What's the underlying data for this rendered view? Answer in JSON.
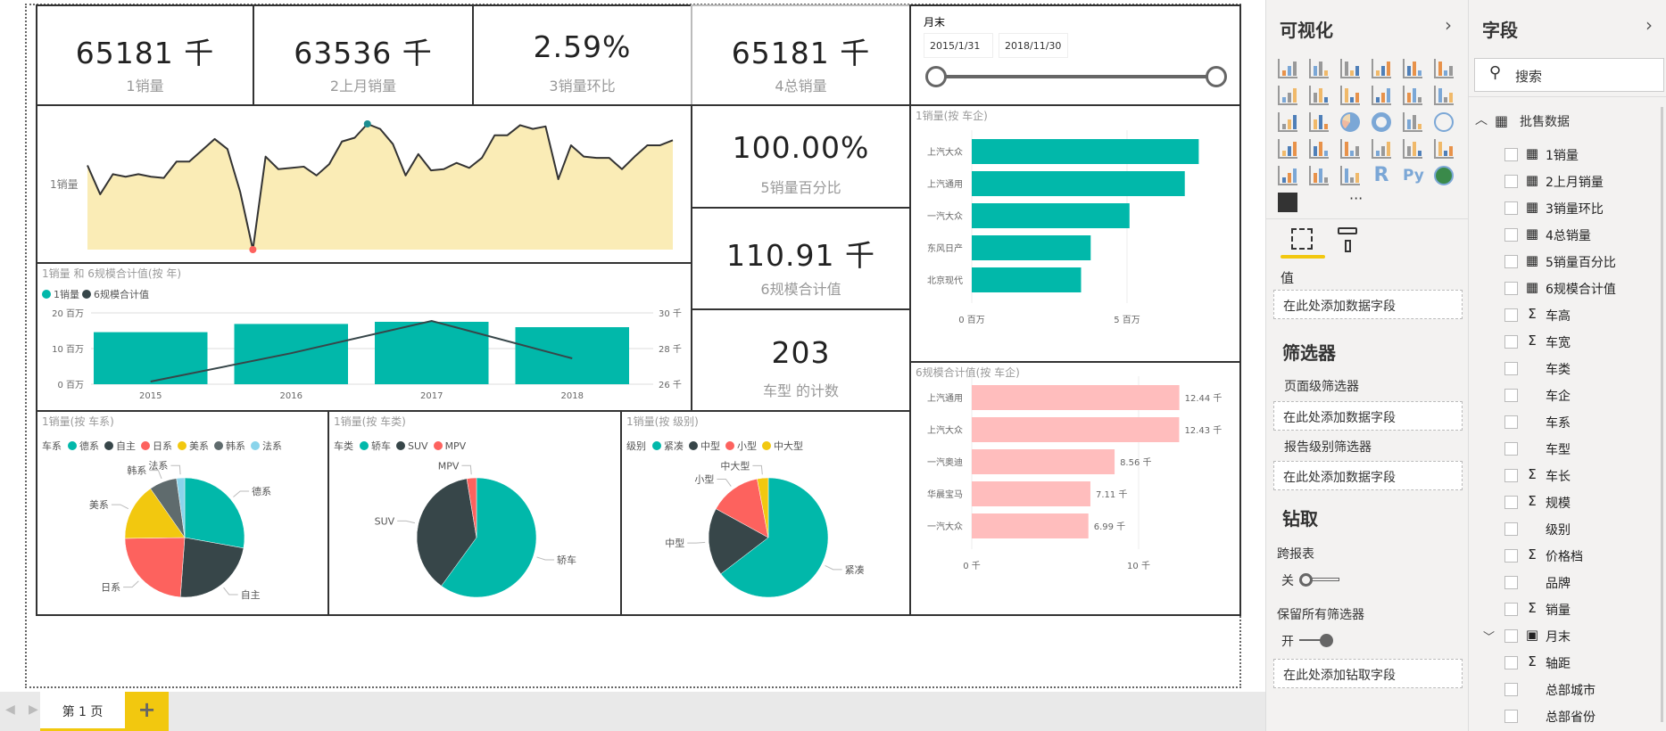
{
  "kpis": [
    {
      "value": "65181 千",
      "label": "1销量"
    },
    {
      "value": "63536 千",
      "label": "2上月销量"
    },
    {
      "value": "2.59%",
      "label": "3销量环比"
    },
    {
      "value": "65181 千",
      "label": "4总销量"
    },
    {
      "value": "100.00%",
      "label": "5销量百分比"
    },
    {
      "value": "110.91 千",
      "label": "6规模合计值"
    },
    {
      "value": "203",
      "label": "车型 的计数"
    }
  ],
  "slicer": {
    "title": "月末",
    "start": "2015/1/31",
    "end": "2018/11/30",
    "range": [
      0,
      1
    ]
  },
  "colors": {
    "teal": "#01B8AA",
    "dark": "#374649",
    "red": "#FD625E",
    "yellow": "#F2C80F",
    "gray": "#5F6B6D",
    "lightblue": "#8AD4EB",
    "pink": "#FFBDBD",
    "area": "#FAECB6"
  },
  "chart_data": [
    {
      "type": "area",
      "name": "monthly-sales",
      "ylabel": "1销量",
      "note": "relative index, no axis shown",
      "values": [
        67,
        44,
        60,
        58,
        60,
        58,
        57,
        70,
        70,
        79,
        88,
        80,
        46,
        0,
        74,
        64,
        65,
        66,
        59,
        68,
        86,
        89,
        100,
        96,
        84,
        59,
        76,
        63,
        64,
        69,
        65,
        73,
        91,
        91,
        99,
        96,
        98,
        56,
        83,
        74,
        73,
        73,
        64,
        74,
        83,
        83,
        87
      ],
      "max_marker_index": 22,
      "min_marker_index": 13
    },
    {
      "type": "bar+line",
      "title": "1销量 和 6规模合计值(按 年)",
      "legend": [
        "1销量",
        "6规模合计值"
      ],
      "categories": [
        "2015",
        "2016",
        "2017",
        "2018"
      ],
      "series": [
        {
          "name": "1销量",
          "unit": "百万",
          "values": [
            14.6,
            16.9,
            17.5,
            16.0
          ]
        },
        {
          "name": "6规模合计值",
          "unit": "千",
          "values": [
            26.15,
            27.74,
            29.55,
            27.45
          ]
        }
      ],
      "yticks_left": [
        "0 百万",
        "10 百万",
        "20 百万"
      ],
      "yticks_right": [
        "26 千",
        "28 千",
        "30 千"
      ],
      "ylim_left": [
        0,
        20
      ],
      "ylim_right": [
        26,
        30
      ]
    },
    {
      "type": "bar",
      "orientation": "horizontal",
      "title": "1销量(按 车企)",
      "categories": [
        "上汽大众",
        "上汽通用",
        "一汽大众",
        "东风日产",
        "北京现代"
      ],
      "values": [
        7.31,
        6.86,
        5.08,
        3.83,
        3.52
      ],
      "unit": "百万",
      "xticks": [
        "0 百万",
        "5 百万"
      ],
      "xlim": [
        0,
        7.8
      ]
    },
    {
      "type": "bar",
      "orientation": "horizontal",
      "title": "6规模合计值(按 车企)",
      "categories": [
        "上汽通用",
        "上汽大众",
        "一汽奥迪",
        "华晨宝马",
        "一汽大众"
      ],
      "values": [
        12.44,
        12.43,
        8.56,
        7.11,
        6.99
      ],
      "labels": [
        "12.44 千",
        "12.43 千",
        "8.56 千",
        "7.11 千",
        "6.99 千"
      ],
      "unit": "千",
      "xticks": [
        "0 千",
        "10 千"
      ],
      "xlim": [
        0,
        14.5
      ]
    },
    {
      "type": "pie",
      "title": "1销量(按 车系)",
      "legend_title": "车系",
      "categories": [
        "德系",
        "自主",
        "日系",
        "美系",
        "韩系",
        "法系"
      ],
      "values": [
        27.8,
        23.3,
        23.6,
        15.5,
        7.5,
        2.2
      ],
      "colors": [
        "#01B8AA",
        "#374649",
        "#FD625E",
        "#F2C80F",
        "#5F6B6D",
        "#8AD4EB"
      ]
    },
    {
      "type": "pie",
      "title": "1销量(按 车类)",
      "legend_title": "车类",
      "categories": [
        "轿车",
        "SUV",
        "MPV"
      ],
      "values": [
        60.0,
        37.4,
        2.6
      ],
      "colors": [
        "#01B8AA",
        "#374649",
        "#FD625E"
      ]
    },
    {
      "type": "pie",
      "title": "1销量(按 级别)",
      "legend_title": "级别",
      "categories": [
        "紧凑",
        "中型",
        "小型",
        "中大型"
      ],
      "values": [
        64.6,
        18.4,
        14.0,
        3.0
      ],
      "colors": [
        "#01B8AA",
        "#374649",
        "#FD625E",
        "#F2C80F"
      ]
    }
  ],
  "tabs": {
    "page1": "第 1 页",
    "add": "+"
  },
  "viz": {
    "title": "可视化",
    "values_label": "值",
    "values_drop": "在此处添加数据字段",
    "filters_title": "筛选器",
    "page_filters": "页面级筛选器",
    "page_drop": "在此处添加数据字段",
    "report_filters": "报告级别筛选器",
    "report_drop": "在此处添加数据字段",
    "drill_title": "钻取",
    "cross_report": "跨报表",
    "cross_state": "关",
    "keep_filters": "保留所有筛选器",
    "keep_state": "开",
    "drill_drop": "在此处添加钻取字段",
    "more": "···"
  },
  "fields": {
    "title": "字段",
    "search_placeholder": "搜索",
    "table": "批售数据",
    "items": [
      {
        "name": "1销量",
        "icon": "calc"
      },
      {
        "name": "2上月销量",
        "icon": "calc"
      },
      {
        "name": "3销量环比",
        "icon": "calc"
      },
      {
        "name": "4总销量",
        "icon": "calc"
      },
      {
        "name": "5销量百分比",
        "icon": "calc"
      },
      {
        "name": "6规模合计值",
        "icon": "calc"
      },
      {
        "name": "车高",
        "icon": "sigma"
      },
      {
        "name": "车宽",
        "icon": "sigma"
      },
      {
        "name": "车类",
        "icon": ""
      },
      {
        "name": "车企",
        "icon": ""
      },
      {
        "name": "车系",
        "icon": ""
      },
      {
        "name": "车型",
        "icon": ""
      },
      {
        "name": "车长",
        "icon": "sigma"
      },
      {
        "name": "规模",
        "icon": "sigma"
      },
      {
        "name": "级别",
        "icon": ""
      },
      {
        "name": "价格档",
        "icon": "sigma"
      },
      {
        "name": "品牌",
        "icon": ""
      },
      {
        "name": "销量",
        "icon": "sigma"
      },
      {
        "name": "月末",
        "icon": "calendar"
      },
      {
        "name": "轴距",
        "icon": "sigma"
      },
      {
        "name": "总部城市",
        "icon": ""
      },
      {
        "name": "总部省份",
        "icon": ""
      }
    ]
  }
}
